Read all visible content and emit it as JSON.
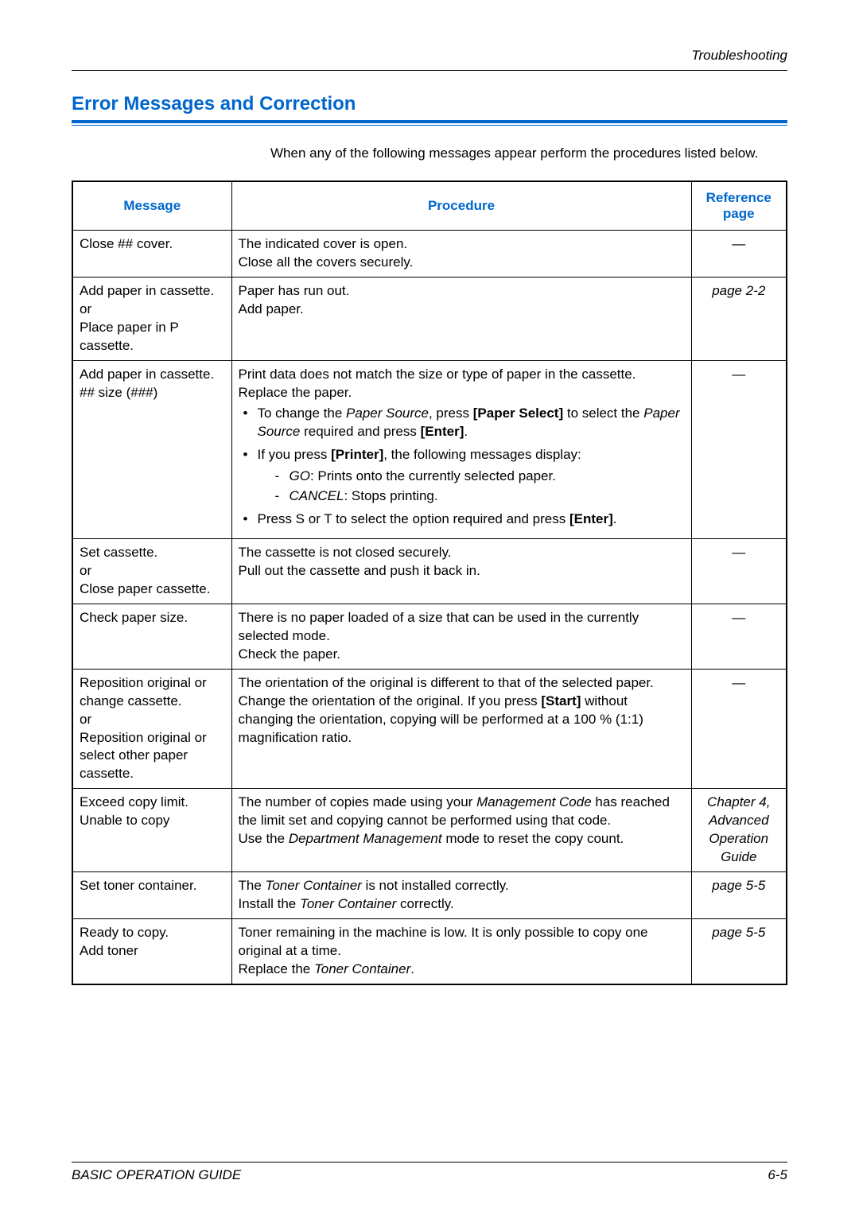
{
  "header": {
    "section": "Troubleshooting"
  },
  "title": "Error Messages and Correction",
  "intro": "When any of the following messages appear perform the procedures listed below.",
  "columns": {
    "message": "Message",
    "procedure": "Procedure",
    "reference": "Reference page"
  },
  "rows": [
    {
      "message": "Close ## cover.",
      "procedure_lines": [
        "The indicated cover is open.",
        "Close all the covers securely."
      ],
      "reference": "—",
      "ref_style": "dash"
    },
    {
      "message": "Add paper in cassette.\nor\nPlace paper in P cassette.",
      "procedure_lines": [
        "Paper has run out.",
        "Add paper."
      ],
      "reference": "page 2-2",
      "ref_style": "italic"
    },
    {
      "message": "Add paper in cassette. ## size (###)",
      "procedure_lines": [
        "Print data does not match the size or type of paper in the cassette.",
        "Replace the paper."
      ],
      "bullets": [
        {
          "pre": "To change the ",
          "i1": "Paper Source",
          "mid1": ", press ",
          "b1": "[Paper Select]",
          "mid2": " to select the ",
          "i2": "Paper Source",
          "mid3": " required and press ",
          "b2": "[Enter]",
          "post": "."
        },
        {
          "pre": "If you press ",
          "b1": "[Printer]",
          "post": ", the following messages display:",
          "subs": [
            {
              "i": "GO",
              "t": ": Prints onto the currently selected paper."
            },
            {
              "i": "CANCEL",
              "t": ": Stops printing."
            }
          ]
        },
        {
          "pre": "Press  S  or  T  to select the option required and press ",
          "b1": "[Enter]",
          "post": "."
        }
      ],
      "reference": "—",
      "ref_style": "dash"
    },
    {
      "message": "Set cassette.\nor\nClose paper cassette.",
      "procedure_lines": [
        "The cassette is not closed securely.",
        "Pull out the cassette and push it back in."
      ],
      "reference": "—",
      "ref_style": "dash"
    },
    {
      "message": "Check paper size.",
      "procedure_lines": [
        "There is no paper loaded of a size that can be used in the currently selected mode.",
        "Check the paper."
      ],
      "reference": "—",
      "ref_style": "dash"
    },
    {
      "message": "Reposition original or change cassette.\nor\nReposition original or select other paper cassette.",
      "procedure_rich": {
        "l1": "The orientation of the original is different to that of the selected paper.",
        "l2a": "Change the orientation of the original. If you press ",
        "b": "[Start]",
        "l2b": " without changing the orientation, copying will be performed at a 100 % (1:1) magnification ratio."
      },
      "reference": "—",
      "ref_style": "dash"
    },
    {
      "message": "Exceed copy limit.\nUnable to copy",
      "procedure_rich2": {
        "a": "The number of copies made using your ",
        "i1": "Management Code",
        "b": " has reached the limit set and copying cannot be performed using that code.",
        "c": "Use the ",
        "i2": "Department Management",
        "d": " mode to reset the copy count."
      },
      "reference": "Chapter 4, Advanced Operation Guide",
      "ref_style": "italic"
    },
    {
      "message": "Set toner container.",
      "procedure_rich3": {
        "a": "The ",
        "i1": "Toner Container",
        "b": " is not installed correctly.",
        "c": "Install the ",
        "i2": "Toner Container",
        "d": " correctly."
      },
      "reference": "page 5-5",
      "ref_style": "italic"
    },
    {
      "message": "Ready to copy.\nAdd toner",
      "procedure_rich4": {
        "a": "Toner remaining in the machine is low. It is only possible to copy one original at a time.",
        "b": "Replace the ",
        "i": "Toner Container",
        "c": "."
      },
      "reference": "page 5-5",
      "ref_style": "italic"
    }
  ],
  "footer": {
    "left": "BASIC OPERATION GUIDE",
    "right": "6-5"
  },
  "colors": {
    "accent": "#0066cc",
    "text": "#000000",
    "border": "#000000"
  }
}
